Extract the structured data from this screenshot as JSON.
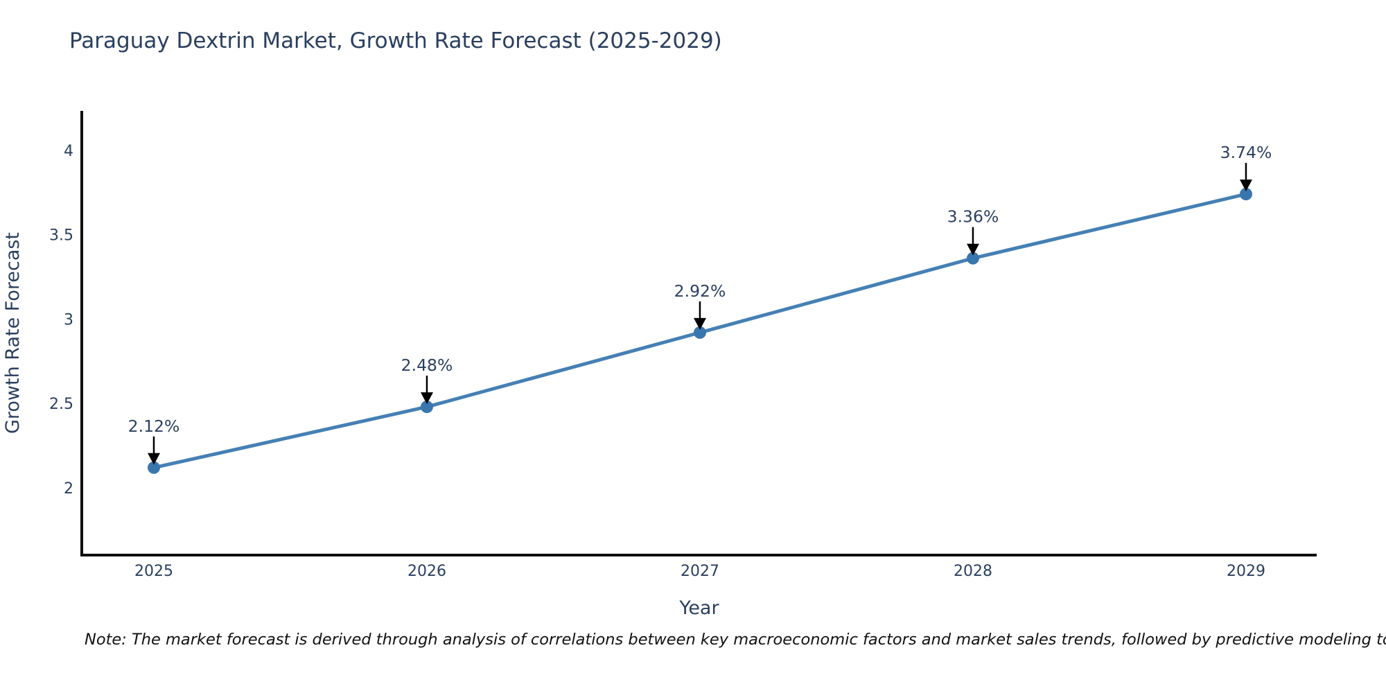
{
  "title": "Paraguay Dextrin Market, Growth Rate Forecast (2025-2029)",
  "note": "Note: The market forecast is derived through analysis of correlations between key macroeconomic factors and market sales trends, followed by predictive modeling to project future sales",
  "colors": {
    "line": "#4580b4",
    "marker": "#3a76ae",
    "text": "#2a3f5f",
    "axis": "#0d0d0d",
    "arrow": "#000000",
    "note_text": "#111111",
    "background": "#ffffff"
  },
  "chart_data": {
    "type": "line",
    "title": "Paraguay Dextrin Market, Growth Rate Forecast (2025-2029)",
    "xlabel": "Year",
    "ylabel": "Growth Rate Forecast",
    "categories": [
      "2025",
      "2026",
      "2027",
      "2028",
      "2029"
    ],
    "x": [
      2025,
      2026,
      2027,
      2028,
      2029
    ],
    "values": [
      2.12,
      2.48,
      2.92,
      3.36,
      3.74
    ],
    "point_labels": [
      "2.12%",
      "2.48%",
      "2.92%",
      "3.36%",
      "3.74%"
    ],
    "yticks": [
      2,
      2.5,
      3,
      3.5,
      4
    ],
    "ytick_labels": [
      "2",
      "2.5",
      "3",
      "3.5",
      "4"
    ],
    "ylim": [
      1.602,
      4.233
    ],
    "xlim": [
      2024.736,
      2029.259
    ],
    "grid": false,
    "legend": null,
    "markers": true,
    "annotation_arrows": true
  }
}
